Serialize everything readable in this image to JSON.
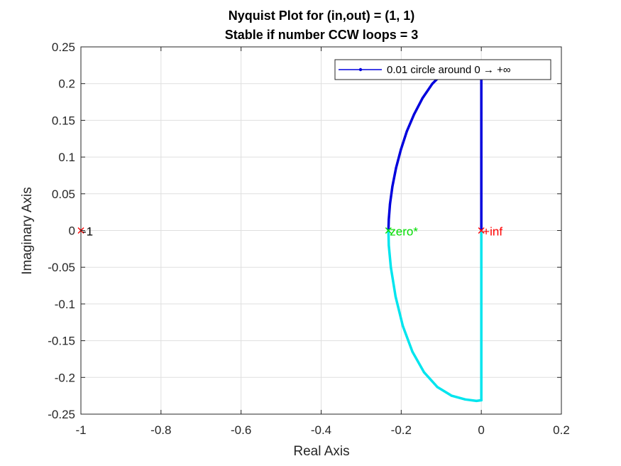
{
  "chart_data": {
    "type": "line",
    "title": "Nyquist Plot for (in,out) = (1, 1)",
    "subtitle": "Stable if number CCW loops = 3",
    "xlabel": "Real Axis",
    "ylabel": "Imaginary Axis",
    "xlim": [
      -1,
      0.2
    ],
    "ylim": [
      -0.25,
      0.25
    ],
    "x_ticks": [
      "-1",
      "-0.8",
      "-0.6",
      "-0.4",
      "-0.2",
      "0",
      "0.2"
    ],
    "x_tick_values": [
      -1,
      -0.8,
      -0.6,
      -0.4,
      -0.2,
      0,
      0.2
    ],
    "y_ticks": [
      "0.25",
      "0.2",
      "0.15",
      "0.1",
      "0.05",
      "0",
      "-0.05",
      "-0.1",
      "-0.15",
      "-0.2",
      "-0.25"
    ],
    "y_tick_values": [
      0.25,
      0.2,
      0.15,
      0.1,
      0.05,
      0,
      -0.05,
      -0.1,
      -0.15,
      -0.2,
      -0.25
    ],
    "grid": true,
    "legend": {
      "placement": "top-right",
      "entries": [
        "0.01 circle around 0 → +∞"
      ]
    },
    "series": [
      {
        "name": "0.01 circle around 0 → +∞",
        "color": "#0000dd",
        "marker": "dot",
        "x": [
          -0.232,
          -0.231,
          -0.228,
          -0.222,
          -0.213,
          -0.201,
          -0.186,
          -0.168,
          -0.147,
          -0.122,
          -0.096
        ],
        "y": [
          0.0,
          0.015,
          0.036,
          0.06,
          0.085,
          0.11,
          0.135,
          0.158,
          0.18,
          0.2,
          0.214
        ]
      },
      {
        "color": "#0000dd",
        "x": [
          0.0,
          0.0,
          0.0,
          0.0,
          0.0,
          0.0
        ],
        "y": [
          0.208,
          0.16,
          0.12,
          0.08,
          0.04,
          0.001
        ]
      },
      {
        "color": "#00e5ee",
        "x": [
          -0.232,
          -0.231,
          -0.226,
          -0.214,
          -0.196,
          -0.172,
          -0.143,
          -0.11,
          -0.074,
          -0.04,
          -0.012,
          0.0
        ],
        "y": [
          0.0,
          -0.02,
          -0.05,
          -0.09,
          -0.13,
          -0.165,
          -0.193,
          -0.213,
          -0.225,
          -0.23,
          -0.232,
          -0.231
        ]
      },
      {
        "color": "#00e5ee",
        "x": [
          0.0,
          0.0,
          0.0,
          0.0
        ],
        "y": [
          -0.231,
          -0.15,
          -0.06,
          -0.003
        ]
      }
    ],
    "annotations": [
      {
        "text": "-1",
        "x": -1.0,
        "y": 0.0,
        "color": "#000000",
        "marker_color": "#ff0000"
      },
      {
        "text": "zero*",
        "x": -0.232,
        "y": 0.0,
        "color": "#00dd00",
        "marker_color": "#00dd00"
      },
      {
        "text": "+inf",
        "x": 0.0,
        "y": 0.0,
        "color": "#ff0000",
        "marker_color": "#ff0000"
      }
    ]
  }
}
